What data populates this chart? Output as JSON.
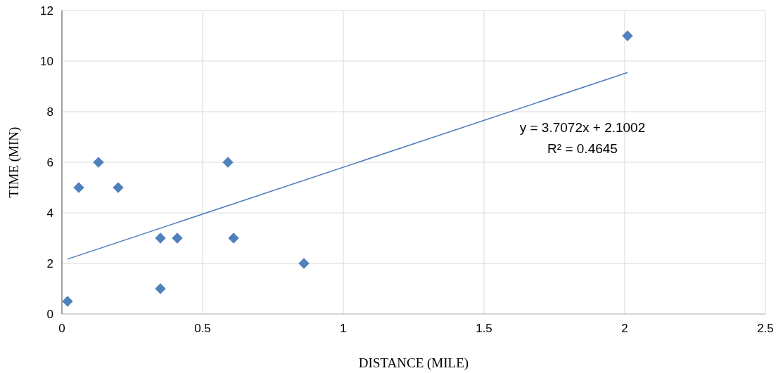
{
  "chart_data": {
    "type": "scatter",
    "xlabel": "DISTANCE (MILE)",
    "ylabel": "TIME (MIN)",
    "annotations": [
      "y = 3.7072x + 2.1002",
      "R² = 0.4645"
    ],
    "xlim": [
      0,
      2.5
    ],
    "xticks": [
      0,
      0.5,
      1,
      1.5,
      2,
      2.5
    ],
    "ylim": [
      0,
      12
    ],
    "yticks": [
      0,
      2,
      4,
      6,
      8,
      10,
      12
    ],
    "grid": true,
    "marker": "diamond",
    "series": [
      {
        "color": "#4f81bd",
        "x": [
          0.02,
          0.06,
          0.13,
          0.2,
          0.35,
          0.35,
          0.41,
          0.59,
          0.61,
          0.86,
          2.01
        ],
        "values": [
          0.5,
          5,
          6,
          5,
          3,
          1,
          3,
          6,
          3,
          2,
          11
        ]
      },
      {
        "type": "line",
        "color": "#4a7ebb",
        "marker": "none",
        "line_style": "solid",
        "x": [
          0.02,
          2.01
        ],
        "values": [
          2.17,
          9.55
        ]
      }
    ]
  }
}
